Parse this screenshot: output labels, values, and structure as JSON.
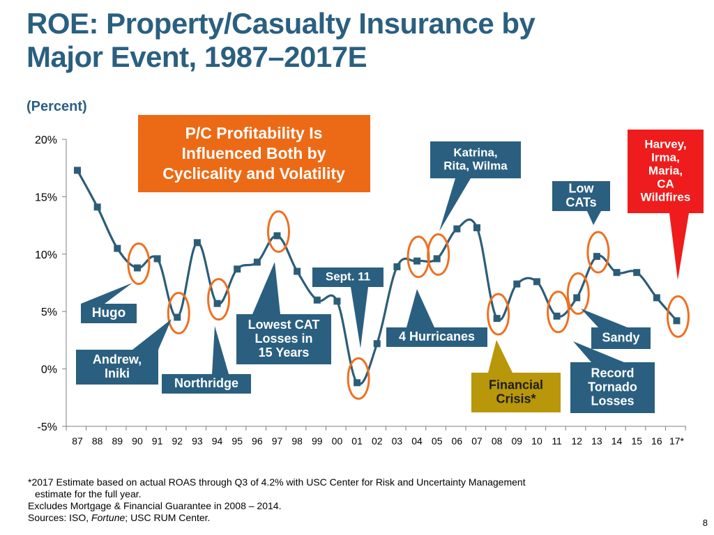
{
  "slide": {
    "title_line1": "ROE: Property/Casualty Insurance by",
    "title_line2": "Major Event, 1987–2017E",
    "subtitle": "(Percent)",
    "page_number": "8"
  },
  "footnotes": {
    "estimate_line1": "*2017 Estimate based on actual ROAS through Q3 of 4.2% with USC Center for Risk and Uncertainty Management",
    "estimate_line2": "estimate for the full year.",
    "exclusions": "Excludes Mortgage & Financial Guarantee in 2008 – 2014.",
    "sources_prefix": "Sources: ISO, ",
    "sources_italic": "Fortune",
    "sources_suffix": "; USC RUM Center."
  },
  "chart_data": {
    "type": "line",
    "title": "ROE: Property/Casualty Insurance by Major Event, 1987–2017E",
    "ylabel": "(Percent)",
    "xlabel": "",
    "ylim": [
      -5,
      20
    ],
    "yticks": [
      20,
      15,
      10,
      5,
      0,
      -5
    ],
    "ytick_labels": [
      "20%",
      "15%",
      "10%",
      "5%",
      "0%",
      "-5%"
    ],
    "categories": [
      "87",
      "88",
      "89",
      "90",
      "91",
      "92",
      "93",
      "94",
      "95",
      "96",
      "97",
      "98",
      "99",
      "00",
      "01",
      "02",
      "03",
      "04",
      "05",
      "06",
      "07",
      "08",
      "09",
      "10",
      "11",
      "12",
      "13",
      "14",
      "15",
      "16",
      "17*"
    ],
    "series": [
      {
        "name": "P/C ROE",
        "color": "#2b5d78",
        "values": [
          17.3,
          14.1,
          10.5,
          8.8,
          9.6,
          4.5,
          11.0,
          5.7,
          8.7,
          9.3,
          11.6,
          8.5,
          6.0,
          5.9,
          -1.2,
          2.2,
          8.9,
          9.4,
          9.6,
          12.2,
          12.3,
          4.4,
          7.4,
          7.6,
          4.6,
          6.2,
          9.8,
          8.4,
          8.4,
          6.2,
          4.2
        ]
      }
    ],
    "highlight_color": "#ee7021",
    "highlighted_years": [
      "90",
      "92",
      "94",
      "97",
      "01",
      "04",
      "05",
      "08",
      "11",
      "12",
      "13",
      "17*"
    ],
    "callout_color": "#2a5f80",
    "headline_box": {
      "lines": [
        "P/C Profitability Is",
        "Influenced Both by",
        "Cyclicality and Volatility"
      ],
      "color": "#ec6a16"
    },
    "annotations": [
      {
        "id": "hugo",
        "lines": [
          "Hugo"
        ],
        "target_year": "90",
        "color": "#2a5f80"
      },
      {
        "id": "andrew",
        "lines": [
          "Andrew,",
          "Iniki"
        ],
        "target_year": "92",
        "color": "#2a5f80"
      },
      {
        "id": "northridge",
        "lines": [
          "Northridge"
        ],
        "target_year": "94",
        "color": "#2a5f80"
      },
      {
        "id": "lowest-cat",
        "lines": [
          "Lowest CAT",
          "Losses in",
          "15 Years"
        ],
        "target_year": "97",
        "color": "#2a5f80"
      },
      {
        "id": "sept11",
        "lines": [
          "Sept. 11"
        ],
        "target_year": "01",
        "color": "#2a5f80"
      },
      {
        "id": "katrina",
        "lines": [
          "Katrina,",
          "Rita, Wilma"
        ],
        "target_year": "05",
        "color": "#2a5f80"
      },
      {
        "id": "four-hurricanes",
        "lines": [
          "4 Hurricanes"
        ],
        "target_year": "04",
        "color": "#2a5f80"
      },
      {
        "id": "financial-crisis",
        "lines": [
          "Financial",
          "Crisis*"
        ],
        "target_year": "08",
        "color": "#b8970a"
      },
      {
        "id": "low-cats",
        "lines": [
          "Low",
          "CATs"
        ],
        "target_year": "13",
        "color": "#2a5f80"
      },
      {
        "id": "sandy",
        "lines": [
          "Sandy"
        ],
        "target_year": "12",
        "color": "#2a5f80"
      },
      {
        "id": "record-tornado",
        "lines": [
          "Record",
          "Tornado",
          "Losses"
        ],
        "target_year": "11",
        "color": "#2a5f80"
      },
      {
        "id": "harvey",
        "lines": [
          "Harvey,",
          "Irma,",
          "Maria,",
          "CA",
          "Wildfires"
        ],
        "target_year": "17*",
        "color": "#ee1c1c"
      }
    ]
  }
}
